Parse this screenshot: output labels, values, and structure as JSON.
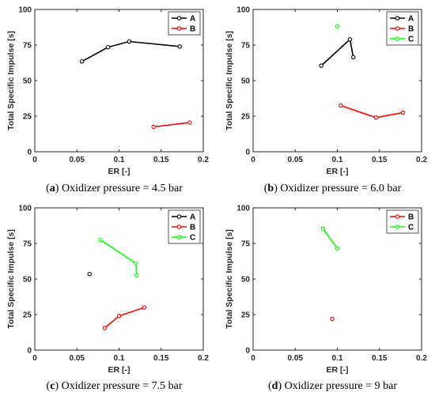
{
  "colors": {
    "A": "#000000",
    "B": "#ff0000",
    "C": "#00ff00",
    "axis": "#262626"
  },
  "chart_data": [
    {
      "type": "line",
      "caption_letter": "a",
      "caption_text": " Oxidizer pressure = 4.5 bar",
      "xlabel": "ER [-]",
      "ylabel": "Total Specific Impulse [s]",
      "xlim": [
        0,
        0.2
      ],
      "ylim": [
        0,
        100
      ],
      "xticks": [
        "0",
        "0.05",
        "0.1",
        "0.15",
        "0.2"
      ],
      "yticks": [
        "0",
        "25",
        "50",
        "75",
        "100"
      ],
      "legend_position": "top-right",
      "series": [
        {
          "name": "A",
          "x": [
            0.056,
            0.087,
            0.112,
            0.172
          ],
          "y": [
            63.5,
            73.5,
            77.5,
            74.0
          ]
        },
        {
          "name": "B",
          "x": [
            0.141,
            0.184
          ],
          "y": [
            17.5,
            20.5
          ]
        }
      ]
    },
    {
      "type": "line",
      "caption_letter": "b",
      "caption_text": " Oxidizer pressure = 6.0 bar",
      "xlabel": "ER [-]",
      "ylabel": "Total Specific Impulse [s]",
      "xlim": [
        0,
        0.2
      ],
      "ylim": [
        0,
        100
      ],
      "xticks": [
        "0",
        "0.05",
        "0.1",
        "0.15",
        "0.2"
      ],
      "yticks": [
        "0",
        "25",
        "50",
        "75",
        "100"
      ],
      "legend_position": "top-right",
      "series": [
        {
          "name": "A",
          "x": [
            0.081,
            0.115,
            0.119
          ],
          "y": [
            60.5,
            79.0,
            66.5
          ]
        },
        {
          "name": "B",
          "x": [
            0.104,
            0.146,
            0.178
          ],
          "y": [
            32.5,
            24.0,
            27.5
          ]
        },
        {
          "name": "C",
          "x": [
            0.1
          ],
          "y": [
            88.0
          ]
        }
      ]
    },
    {
      "type": "line",
      "caption_letter": "c",
      "caption_text": " Oxidizer pressure = 7.5 bar",
      "xlabel": "ER [-]",
      "ylabel": "Total Specific Impulse [s]",
      "xlim": [
        0,
        0.2
      ],
      "ylim": [
        0,
        100
      ],
      "xticks": [
        "0",
        "0.05",
        "0.1",
        "0.15",
        "0.2"
      ],
      "yticks": [
        "0",
        "25",
        "50",
        "75",
        "100"
      ],
      "legend_position": "top-right",
      "series": [
        {
          "name": "A",
          "x": [
            0.065
          ],
          "y": [
            53.5
          ]
        },
        {
          "name": "B",
          "x": [
            0.083,
            0.1,
            0.13
          ],
          "y": [
            15.5,
            24.0,
            30.0
          ]
        },
        {
          "name": "C",
          "x": [
            0.078,
            0.12,
            0.121
          ],
          "y": [
            77.5,
            61.0,
            52.5
          ]
        }
      ]
    },
    {
      "type": "line",
      "caption_letter": "d",
      "caption_text": " Oxidizer pressure = 9 bar",
      "xlabel": "ER [-]",
      "ylabel": "Total Specific Impulse [s]",
      "xlim": [
        0,
        0.2
      ],
      "ylim": [
        0,
        100
      ],
      "xticks": [
        "0",
        "0.05",
        "0.1",
        "0.15",
        "0.2"
      ],
      "yticks": [
        "0",
        "25",
        "50",
        "75",
        "100"
      ],
      "legend_position": "top-right",
      "series": [
        {
          "name": "B",
          "x": [
            0.094
          ],
          "y": [
            22.0
          ]
        },
        {
          "name": "C",
          "x": [
            0.083,
            0.1
          ],
          "y": [
            85.5,
            71.5
          ]
        }
      ]
    }
  ]
}
